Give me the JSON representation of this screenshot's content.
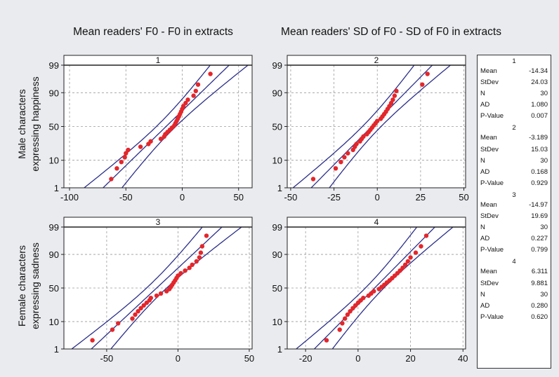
{
  "column_titles": [
    "Mean readers' F0 - F0 in extracts",
    "Mean readers' SD of F0 - SD of F0 in extracts"
  ],
  "row_labels": [
    [
      "Male characters",
      "expressing happiness"
    ],
    [
      "Female characters",
      "expressing sadness"
    ]
  ],
  "y_ticks": [
    "1",
    "10",
    "50",
    "90",
    "99"
  ],
  "colors": {
    "point": "#e3262b",
    "band": "#2b2f8a",
    "grid": "#9a9a9a",
    "background": "#e9ebee"
  },
  "stat_labels": [
    "Mean",
    "StDev",
    "N",
    "AD",
    "P-Value"
  ],
  "stats": [
    {
      "panel": "1",
      "values": [
        "-14.34",
        "24.03",
        "30",
        "1.080",
        "0.007"
      ]
    },
    {
      "panel": "2",
      "values": [
        "-3.189",
        "15.03",
        "30",
        "0.168",
        "0.929"
      ]
    },
    {
      "panel": "3",
      "values": [
        "-14.97",
        "19.69",
        "30",
        "0.227",
        "0.799"
      ]
    },
    {
      "panel": "4",
      "values": [
        "6.311",
        "9.881",
        "30",
        "0.280",
        "0.620"
      ]
    }
  ],
  "chart_data": [
    {
      "type": "scatter",
      "subtype": "normal-probability-plot",
      "panel": "1",
      "xlim": [
        -105,
        62
      ],
      "xticks": [
        -100,
        -50,
        0,
        50
      ],
      "ylim_percent": [
        1,
        99
      ],
      "grid": true,
      "mean": -14.34,
      "stdev": 24.03,
      "n": 30,
      "x": [
        -63,
        -58,
        -54,
        -51,
        -50,
        -48,
        -37,
        -30,
        -28,
        -19,
        -16,
        -15,
        -13,
        -11,
        -9,
        -7,
        -6,
        -5,
        -4,
        -3,
        -2,
        -1,
        0,
        1,
        3,
        5,
        10,
        12,
        14,
        25
      ]
    },
    {
      "type": "scatter",
      "subtype": "normal-probability-plot",
      "panel": "2",
      "xlim": [
        -52,
        51
      ],
      "xticks": [
        -50,
        -25,
        0,
        25,
        50
      ],
      "ylim_percent": [
        1,
        99
      ],
      "grid": true,
      "mean": -3.189,
      "stdev": 15.03,
      "n": 30,
      "x": [
        -37,
        -24,
        -21,
        -19,
        -17,
        -14,
        -13,
        -12,
        -10,
        -9,
        -8,
        -6,
        -5,
        -4,
        -3,
        -2,
        -1,
        0,
        2,
        3,
        4,
        5,
        6,
        7,
        8,
        9,
        10,
        11,
        26,
        29
      ]
    },
    {
      "type": "scatter",
      "subtype": "normal-probability-plot",
      "panel": "3",
      "xlim": [
        -80,
        52
      ],
      "xticks": [
        -50,
        0,
        50
      ],
      "ylim_percent": [
        1,
        99
      ],
      "grid": true,
      "mean": -14.97,
      "stdev": 19.69,
      "n": 30,
      "x": [
        -60,
        -46,
        -42,
        -32,
        -30,
        -28,
        -26,
        -24,
        -22,
        -20,
        -19,
        -15,
        -12,
        -8,
        -6,
        -5,
        -4,
        -3,
        -2,
        -1,
        0,
        2,
        5,
        8,
        10,
        13,
        15,
        16,
        17,
        20
      ]
    },
    {
      "type": "scatter",
      "subtype": "normal-probability-plot",
      "panel": "4",
      "xlim": [
        -27,
        41
      ],
      "xticks": [
        -20,
        0,
        20,
        40
      ],
      "ylim_percent": [
        1,
        99
      ],
      "grid": true,
      "mean": 6.311,
      "stdev": 9.881,
      "n": 30,
      "x": [
        -12,
        -7,
        -6,
        -5,
        -4,
        -3,
        -2,
        -1,
        0,
        1,
        2,
        4,
        5,
        6,
        8,
        9,
        10,
        11,
        12,
        13,
        14,
        15,
        16,
        17,
        18,
        19,
        20,
        22,
        24,
        26
      ]
    }
  ]
}
